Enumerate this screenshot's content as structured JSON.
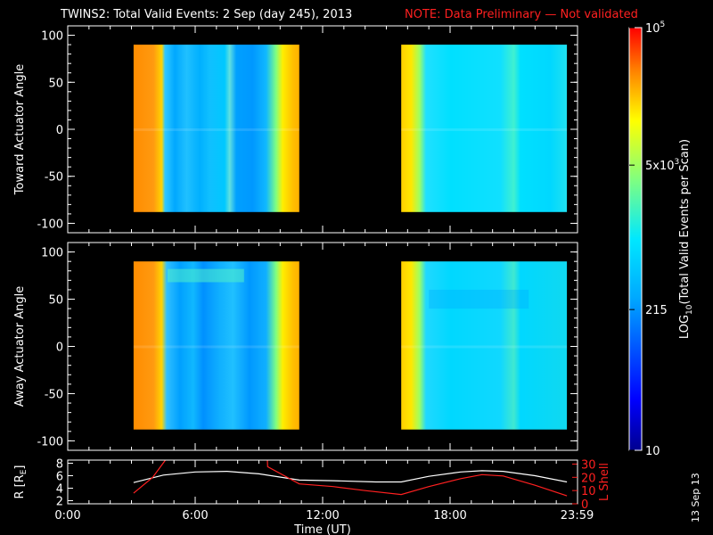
{
  "title": {
    "main": "TWINS2: Total Valid Events:  2 Sep (day 245), 2013",
    "note": "NOTE: Data Preliminary — Not validated"
  },
  "stamp": "13 Sep 13",
  "colors": {
    "note": "#ff2020",
    "lshell": "#ff2020",
    "rline": "#ffffff",
    "axes": "#ffffff"
  },
  "chart_data": [
    {
      "type": "heatmap",
      "ylabel": "Toward Actuator Angle",
      "ylim": [
        -110,
        110
      ],
      "yticks": [
        100,
        50,
        0,
        -50,
        -100
      ],
      "xlim": [
        0,
        24
      ],
      "data_coverage_hours": [
        [
          3.1,
          10.9
        ],
        [
          15.7,
          23.5
        ]
      ],
      "angle_range": [
        -88,
        90
      ]
    },
    {
      "type": "heatmap",
      "ylabel": "Away Actuator Angle",
      "ylim": [
        -110,
        110
      ],
      "yticks": [
        100,
        50,
        0,
        -50,
        -100
      ],
      "xlim": [
        0,
        24
      ],
      "data_coverage_hours": [
        [
          3.1,
          10.9
        ],
        [
          15.7,
          23.5
        ]
      ],
      "angle_range": [
        -88,
        90
      ]
    },
    {
      "type": "line",
      "ylabel_left": "R [R",
      "ylabel_left_sub": "E",
      "ylabel_left_end": "]",
      "ylabel_right": "L Shell",
      "xlabel": "Time (UT)",
      "xlim": [
        0,
        24
      ],
      "xticks": [
        "0:00",
        "6:00",
        "12:00",
        "18:00",
        "23:59"
      ],
      "xtick_values": [
        0,
        6,
        12,
        18,
        23.98
      ],
      "ylim_left": [
        1.5,
        8.5
      ],
      "yticks_left": [
        2,
        4,
        6,
        8
      ],
      "ylim_right": [
        0,
        33
      ],
      "yticks_right": [
        0,
        10,
        20,
        30
      ],
      "series": [
        {
          "axis": "left",
          "x": [
            3.1,
            4.5,
            6.0,
            7.5,
            9.0,
            10.9,
            12.5,
            14.5,
            15.7,
            17.0,
            18.5,
            19.5,
            20.5,
            22.0,
            23.5
          ],
          "y": [
            4.9,
            6.1,
            6.6,
            6.7,
            6.3,
            5.3,
            5.2,
            5.0,
            5.0,
            5.9,
            6.6,
            6.8,
            6.7,
            6.0,
            5.0
          ]
        },
        {
          "axis": "right",
          "x": [
            3.1,
            4.0,
            4.6,
            4.61,
            9.4,
            9.41,
            10.9,
            12.5,
            14.0,
            15.7,
            17.0,
            18.5,
            19.5,
            20.5,
            22.0,
            23.5
          ],
          "y": [
            8.0,
            20.0,
            33.0,
            null,
            33.0,
            28.0,
            15.0,
            13.0,
            10.0,
            7.0,
            13.0,
            19.0,
            22.0,
            21.0,
            14.0,
            6.0
          ]
        }
      ]
    }
  ],
  "colorbar": {
    "label_prefix": "LOG",
    "label_sub": "10",
    "label_suffix": "(Total Valid  Events per Scan)",
    "ticks": [
      {
        "value": 5,
        "base": "10",
        "exp": "5"
      },
      {
        "value": 3.699,
        "base": "5x10",
        "exp": "3"
      },
      {
        "value": 2.332,
        "text": "215"
      },
      {
        "value": 1,
        "text": "10"
      }
    ],
    "range": [
      1,
      5
    ]
  }
}
